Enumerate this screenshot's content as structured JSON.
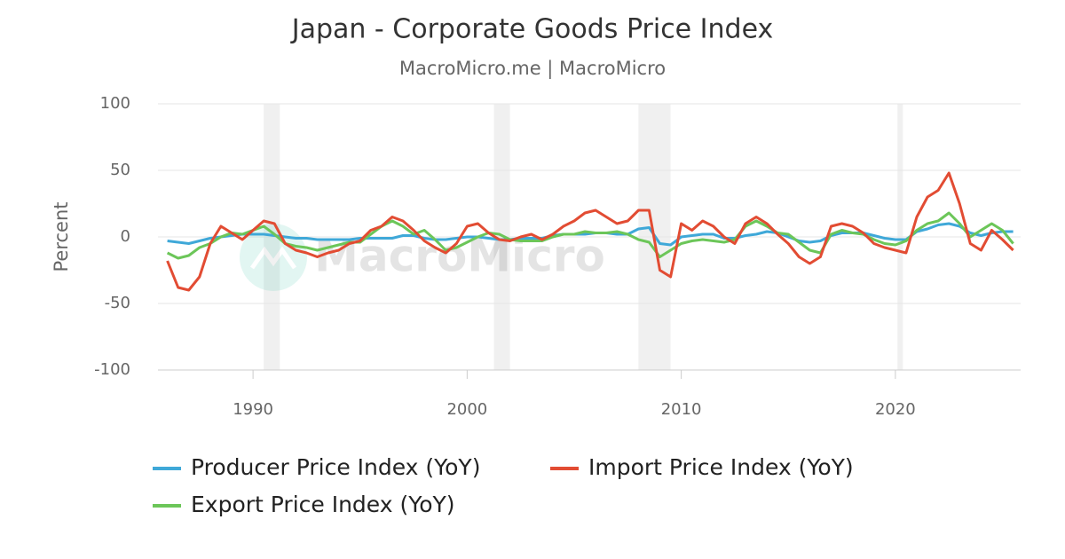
{
  "chart_data": {
    "type": "line",
    "title": "Japan - Corporate Goods Price Index",
    "subtitle": "MacroMicro.me | MacroMicro",
    "watermark": "MacroMicro",
    "y_label": "Percent",
    "xlim": [
      1985.56,
      2025.85
    ],
    "xticks": [
      1990,
      2000,
      2010,
      2020
    ],
    "ylim": [
      -100,
      100
    ],
    "yticks": [
      -100,
      -50,
      0,
      50,
      100
    ],
    "grid": true,
    "shaded_periods": [
      [
        1990.5,
        1991.25
      ],
      [
        2001.25,
        2002.0
      ],
      [
        2008.0,
        2009.5
      ],
      [
        2020.1,
        2020.35
      ]
    ],
    "x": [
      1986,
      1986.5,
      1987,
      1987.5,
      1988,
      1988.5,
      1989,
      1989.5,
      1990,
      1990.5,
      1991,
      1991.5,
      1992,
      1992.5,
      1993,
      1993.5,
      1994,
      1994.5,
      1995,
      1995.5,
      1996,
      1996.5,
      1997,
      1997.5,
      1998,
      1998.5,
      1999,
      1999.5,
      2000,
      2000.5,
      2001,
      2001.5,
      2002,
      2002.5,
      2003,
      2003.5,
      2004,
      2004.5,
      2005,
      2005.5,
      2006,
      2006.5,
      2007,
      2007.5,
      2008,
      2008.5,
      2009,
      2009.5,
      2010,
      2010.5,
      2011,
      2011.5,
      2012,
      2012.5,
      2013,
      2013.5,
      2014,
      2014.5,
      2015,
      2015.5,
      2016,
      2016.5,
      2017,
      2017.5,
      2018,
      2018.5,
      2019,
      2019.5,
      2020,
      2020.5,
      2021,
      2021.5,
      2022,
      2022.5,
      2023,
      2023.5,
      2024,
      2024.5,
      2025,
      2025.5
    ],
    "series": [
      {
        "name": "Producer Price Index (YoY)",
        "color": "#3fa8d8",
        "values": [
          -3,
          -4,
          -5,
          -3,
          -1,
          0,
          1,
          2,
          2,
          2,
          1,
          0,
          -1,
          -1,
          -2,
          -2,
          -2,
          -2,
          -1,
          -1,
          -1,
          -1,
          1,
          1,
          -1,
          -2,
          -2,
          -1,
          0,
          0,
          -1,
          -2,
          -2,
          -1,
          -1,
          -1,
          1,
          2,
          2,
          2,
          3,
          3,
          2,
          2,
          6,
          7,
          -5,
          -6,
          0,
          1,
          2,
          2,
          -1,
          -1,
          1,
          2,
          4,
          3,
          0,
          -3,
          -4,
          -3,
          1,
          3,
          3,
          3,
          1,
          -1,
          -2,
          -2,
          4,
          6,
          9,
          10,
          8,
          3,
          1,
          3,
          4,
          4
        ]
      },
      {
        "name": "Import Price Index (YoY)",
        "color": "#e24c33",
        "values": [
          -18,
          -38,
          -40,
          -30,
          -5,
          8,
          3,
          -2,
          5,
          12,
          10,
          -5,
          -10,
          -12,
          -15,
          -12,
          -10,
          -5,
          -3,
          5,
          8,
          15,
          12,
          5,
          -3,
          -8,
          -12,
          -5,
          8,
          10,
          3,
          -2,
          -3,
          0,
          2,
          -2,
          2,
          8,
          12,
          18,
          20,
          15,
          10,
          12,
          20,
          20,
          -25,
          -30,
          10,
          5,
          12,
          8,
          0,
          -5,
          10,
          15,
          10,
          2,
          -5,
          -15,
          -20,
          -15,
          8,
          10,
          8,
          3,
          -5,
          -8,
          -10,
          -12,
          15,
          30,
          35,
          48,
          25,
          -5,
          -10,
          5,
          -2,
          -10
        ]
      },
      {
        "name": "Export Price Index (YoY)",
        "color": "#6cc659",
        "values": [
          -12,
          -16,
          -14,
          -8,
          -5,
          0,
          3,
          2,
          5,
          8,
          2,
          -5,
          -7,
          -8,
          -10,
          -8,
          -6,
          -4,
          -4,
          2,
          8,
          12,
          8,
          2,
          5,
          -2,
          -10,
          -8,
          -4,
          0,
          3,
          2,
          -2,
          -3,
          -3,
          -3,
          0,
          2,
          2,
          4,
          3,
          3,
          4,
          2,
          -2,
          -4,
          -15,
          -10,
          -5,
          -3,
          -2,
          -3,
          -4,
          -2,
          8,
          12,
          8,
          3,
          2,
          -4,
          -10,
          -12,
          2,
          5,
          3,
          2,
          -2,
          -5,
          -6,
          -3,
          5,
          10,
          12,
          18,
          10,
          0,
          5,
          10,
          5,
          -5
        ]
      }
    ]
  }
}
